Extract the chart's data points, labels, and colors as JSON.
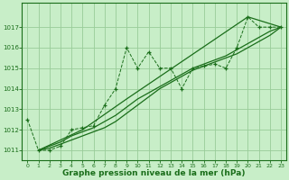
{
  "xlabel": "Graphe pression niveau de la mer (hPa)",
  "background_color": "#c8eec8",
  "grid_color": "#99cc99",
  "line_color": "#1a6e1a",
  "jagged_x": [
    0,
    1,
    2,
    3,
    4,
    5,
    6,
    7,
    8,
    9,
    10,
    11,
    12,
    13,
    14,
    15,
    16,
    17,
    18,
    19,
    20,
    21,
    22,
    23
  ],
  "jagged_y": [
    1012.5,
    1011.0,
    1011.0,
    1011.2,
    1012.0,
    1012.1,
    1012.2,
    1013.2,
    1014.0,
    1016.0,
    1015.0,
    1015.8,
    1015.0,
    1015.0,
    1014.0,
    1015.0,
    1015.1,
    1015.2,
    1015.0,
    1016.0,
    1017.5,
    1017.0,
    1017.0,
    1017.0
  ],
  "smooth1_x": [
    1,
    2,
    3,
    4,
    5,
    6,
    7,
    8,
    9,
    10,
    11,
    12,
    13,
    14,
    15,
    16,
    17,
    18,
    19,
    20,
    21,
    22,
    23
  ],
  "smooth1_y": [
    1011.0,
    1011.1,
    1011.3,
    1011.5,
    1011.7,
    1011.9,
    1012.1,
    1012.4,
    1012.8,
    1013.2,
    1013.6,
    1014.0,
    1014.3,
    1014.6,
    1014.9,
    1015.1,
    1015.3,
    1015.5,
    1015.7,
    1016.0,
    1016.3,
    1016.6,
    1017.0
  ],
  "smooth2_x": [
    1,
    2,
    3,
    4,
    5,
    6,
    7,
    8,
    9,
    10,
    11,
    12,
    13,
    14,
    15,
    16,
    17,
    18,
    19,
    20,
    21,
    22,
    23
  ],
  "smooth2_y": [
    1011.0,
    1011.2,
    1011.4,
    1011.7,
    1011.9,
    1012.1,
    1012.4,
    1012.7,
    1013.1,
    1013.5,
    1013.8,
    1014.1,
    1014.4,
    1014.7,
    1015.0,
    1015.2,
    1015.4,
    1015.6,
    1015.9,
    1016.2,
    1016.5,
    1016.8,
    1017.0
  ],
  "smooth3_x": [
    1,
    5,
    9,
    20,
    23
  ],
  "smooth3_y": [
    1011.0,
    1012.0,
    1013.5,
    1017.5,
    1017.0
  ],
  "ylim": [
    1010.5,
    1018.2
  ],
  "xlim": [
    -0.5,
    23.5
  ],
  "yticks": [
    1011,
    1012,
    1013,
    1014,
    1015,
    1016,
    1017
  ],
  "xticks": [
    0,
    1,
    2,
    3,
    4,
    5,
    6,
    7,
    8,
    9,
    10,
    11,
    12,
    13,
    14,
    15,
    16,
    17,
    18,
    19,
    20,
    21,
    22,
    23
  ]
}
